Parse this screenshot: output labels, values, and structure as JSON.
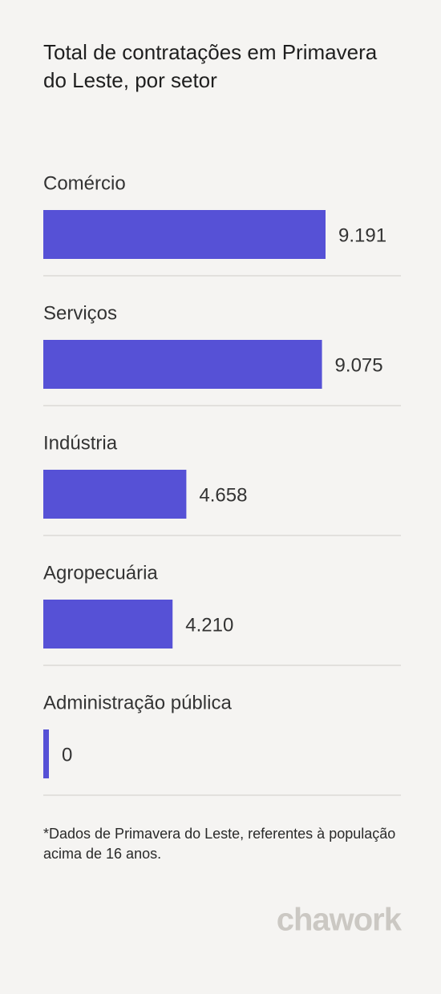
{
  "chart_data": {
    "type": "bar",
    "orientation": "horizontal",
    "title": "Total de contratações em Primavera do Leste, por setor",
    "categories": [
      "Comércio",
      "Serviços",
      "Indústria",
      "Agropecuária",
      "Administração pública"
    ],
    "values": [
      9191,
      9075,
      4658,
      4210,
      0
    ],
    "value_labels": [
      "9.191",
      "9.075",
      "4.658",
      "4.210",
      "0"
    ],
    "color": "#5651d6",
    "footnote": "*Dados de Primavera do Leste, referentes à população acima de 16 anos.",
    "logo": "chawork"
  }
}
